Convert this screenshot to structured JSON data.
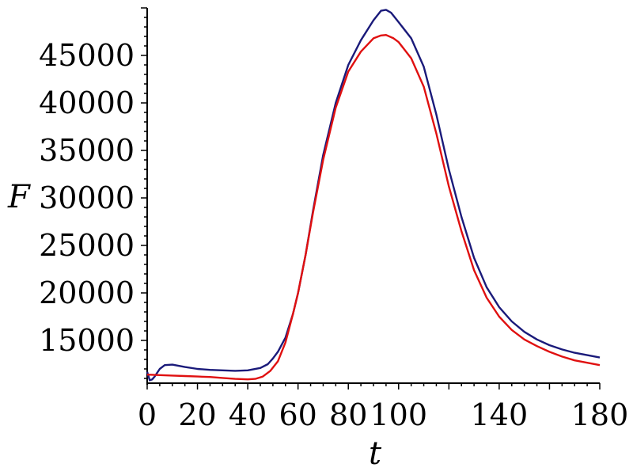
{
  "chart_data": {
    "type": "line",
    "title": "",
    "xlabel": "t",
    "ylabel": "F",
    "xlim": [
      0,
      180
    ],
    "ylim": [
      10500,
      50000
    ],
    "x_ticks": [
      0,
      20,
      40,
      60,
      80,
      100,
      140,
      180
    ],
    "y_ticks": [
      15000,
      20000,
      25000,
      30000,
      35000,
      40000,
      45000
    ],
    "grid": false,
    "legend": "none",
    "series": [
      {
        "color": "#1a1a7a",
        "points": [
          [
            0,
            11700
          ],
          [
            1,
            10800
          ],
          [
            2,
            10900
          ],
          [
            3,
            11200
          ],
          [
            5,
            12000
          ],
          [
            7,
            12400
          ],
          [
            10,
            12450
          ],
          [
            15,
            12200
          ],
          [
            20,
            12000
          ],
          [
            25,
            11900
          ],
          [
            30,
            11850
          ],
          [
            35,
            11800
          ],
          [
            40,
            11850
          ],
          [
            45,
            12100
          ],
          [
            48,
            12500
          ],
          [
            50,
            13100
          ],
          [
            52,
            13800
          ],
          [
            55,
            15300
          ],
          [
            58,
            17800
          ],
          [
            60,
            20000
          ],
          [
            63,
            24000
          ],
          [
            66,
            28700
          ],
          [
            70,
            34500
          ],
          [
            75,
            40000
          ],
          [
            80,
            44000
          ],
          [
            85,
            46600
          ],
          [
            90,
            48700
          ],
          [
            93,
            49700
          ],
          [
            95,
            49800
          ],
          [
            97,
            49500
          ],
          [
            100,
            48500
          ],
          [
            105,
            46800
          ],
          [
            110,
            43800
          ],
          [
            115,
            38800
          ],
          [
            120,
            33000
          ],
          [
            125,
            28000
          ],
          [
            130,
            23700
          ],
          [
            135,
            20600
          ],
          [
            140,
            18500
          ],
          [
            145,
            17000
          ],
          [
            150,
            15900
          ],
          [
            155,
            15100
          ],
          [
            160,
            14500
          ],
          [
            165,
            14050
          ],
          [
            170,
            13700
          ],
          [
            175,
            13450
          ],
          [
            180,
            13200
          ]
        ]
      },
      {
        "color": "#e01010",
        "points": [
          [
            0,
            11400
          ],
          [
            5,
            11350
          ],
          [
            10,
            11300
          ],
          [
            15,
            11250
          ],
          [
            20,
            11200
          ],
          [
            25,
            11150
          ],
          [
            30,
            11050
          ],
          [
            35,
            10950
          ],
          [
            40,
            10900
          ],
          [
            43,
            10950
          ],
          [
            46,
            11200
          ],
          [
            49,
            11800
          ],
          [
            52,
            12800
          ],
          [
            55,
            14800
          ],
          [
            58,
            17800
          ],
          [
            60,
            20000
          ],
          [
            63,
            24000
          ],
          [
            66,
            28500
          ],
          [
            70,
            34000
          ],
          [
            75,
            39500
          ],
          [
            80,
            43300
          ],
          [
            85,
            45400
          ],
          [
            90,
            46800
          ],
          [
            93,
            47100
          ],
          [
            95,
            47150
          ],
          [
            98,
            46800
          ],
          [
            100,
            46400
          ],
          [
            105,
            44700
          ],
          [
            110,
            41700
          ],
          [
            115,
            36800
          ],
          [
            120,
            31200
          ],
          [
            125,
            26500
          ],
          [
            130,
            22400
          ],
          [
            135,
            19500
          ],
          [
            140,
            17500
          ],
          [
            145,
            16100
          ],
          [
            150,
            15100
          ],
          [
            155,
            14400
          ],
          [
            160,
            13800
          ],
          [
            165,
            13300
          ],
          [
            170,
            12900
          ],
          [
            175,
            12650
          ],
          [
            180,
            12400
          ]
        ]
      }
    ]
  }
}
